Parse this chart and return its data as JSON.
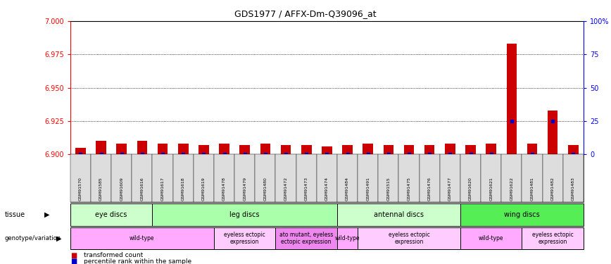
{
  "title": "GDS1977 / AFFX-Dm-Q39096_at",
  "samples": [
    "GSM91570",
    "GSM91585",
    "GSM91609",
    "GSM91616",
    "GSM91617",
    "GSM91618",
    "GSM91619",
    "GSM91478",
    "GSM91479",
    "GSM91480",
    "GSM91472",
    "GSM91473",
    "GSM91474",
    "GSM91484",
    "GSM91491",
    "GSM91515",
    "GSM91475",
    "GSM91476",
    "GSM91477",
    "GSM91620",
    "GSM91621",
    "GSM91622",
    "GSM91481",
    "GSM91482",
    "GSM91483"
  ],
  "transformed_counts": [
    6.905,
    6.91,
    6.908,
    6.91,
    6.908,
    6.908,
    6.907,
    6.908,
    6.907,
    6.908,
    6.907,
    6.907,
    6.906,
    6.907,
    6.908,
    6.907,
    6.907,
    6.907,
    6.908,
    6.907,
    6.908,
    6.983,
    6.908,
    6.933,
    6.907
  ],
  "percentile_ranks": [
    0,
    0,
    0,
    0,
    0,
    0,
    0,
    0,
    0,
    0,
    0,
    0,
    0,
    0,
    0,
    0,
    0,
    0,
    0,
    0,
    0,
    25,
    0,
    25,
    0
  ],
  "ylim_left": [
    6.9,
    7.0
  ],
  "ylim_right": [
    0,
    100
  ],
  "yticks_left": [
    6.9,
    6.925,
    6.95,
    6.975,
    7.0
  ],
  "yticks_right": [
    0,
    25,
    50,
    75,
    100
  ],
  "ytick_labels_right": [
    "0",
    "25",
    "50",
    "75",
    "100%"
  ],
  "grid_values": [
    6.925,
    6.95,
    6.975
  ],
  "tissue_groups": [
    {
      "label": "eye discs",
      "start": 0,
      "end": 4,
      "color": "#ccffcc"
    },
    {
      "label": "leg discs",
      "start": 4,
      "end": 13,
      "color": "#aaffaa"
    },
    {
      "label": "antennal discs",
      "start": 13,
      "end": 19,
      "color": "#ccffcc"
    },
    {
      "label": "wing discs",
      "start": 19,
      "end": 25,
      "color": "#55ee55"
    }
  ],
  "genotype_groups": [
    {
      "label": "wild-type",
      "start": 0,
      "end": 7,
      "color": "#ffaaff"
    },
    {
      "label": "eyeless ectopic\nexpression",
      "start": 7,
      "end": 10,
      "color": "#ffccff"
    },
    {
      "label": "ato mutant, eyeless\nectopic expression",
      "start": 10,
      "end": 13,
      "color": "#ee88ee"
    },
    {
      "label": "wild-type",
      "start": 13,
      "end": 14,
      "color": "#ffaaff"
    },
    {
      "label": "eyeless ectopic\nexpression",
      "start": 14,
      "end": 19,
      "color": "#ffccff"
    },
    {
      "label": "wild-type",
      "start": 19,
      "end": 22,
      "color": "#ffaaff"
    },
    {
      "label": "eyeless ectopic\nexpression",
      "start": 22,
      "end": 25,
      "color": "#ffccff"
    }
  ],
  "bar_color": "#cc0000",
  "percentile_color": "#0000cc",
  "sample_bg_color": "#dddddd",
  "plot_bg_color": "#ffffff"
}
